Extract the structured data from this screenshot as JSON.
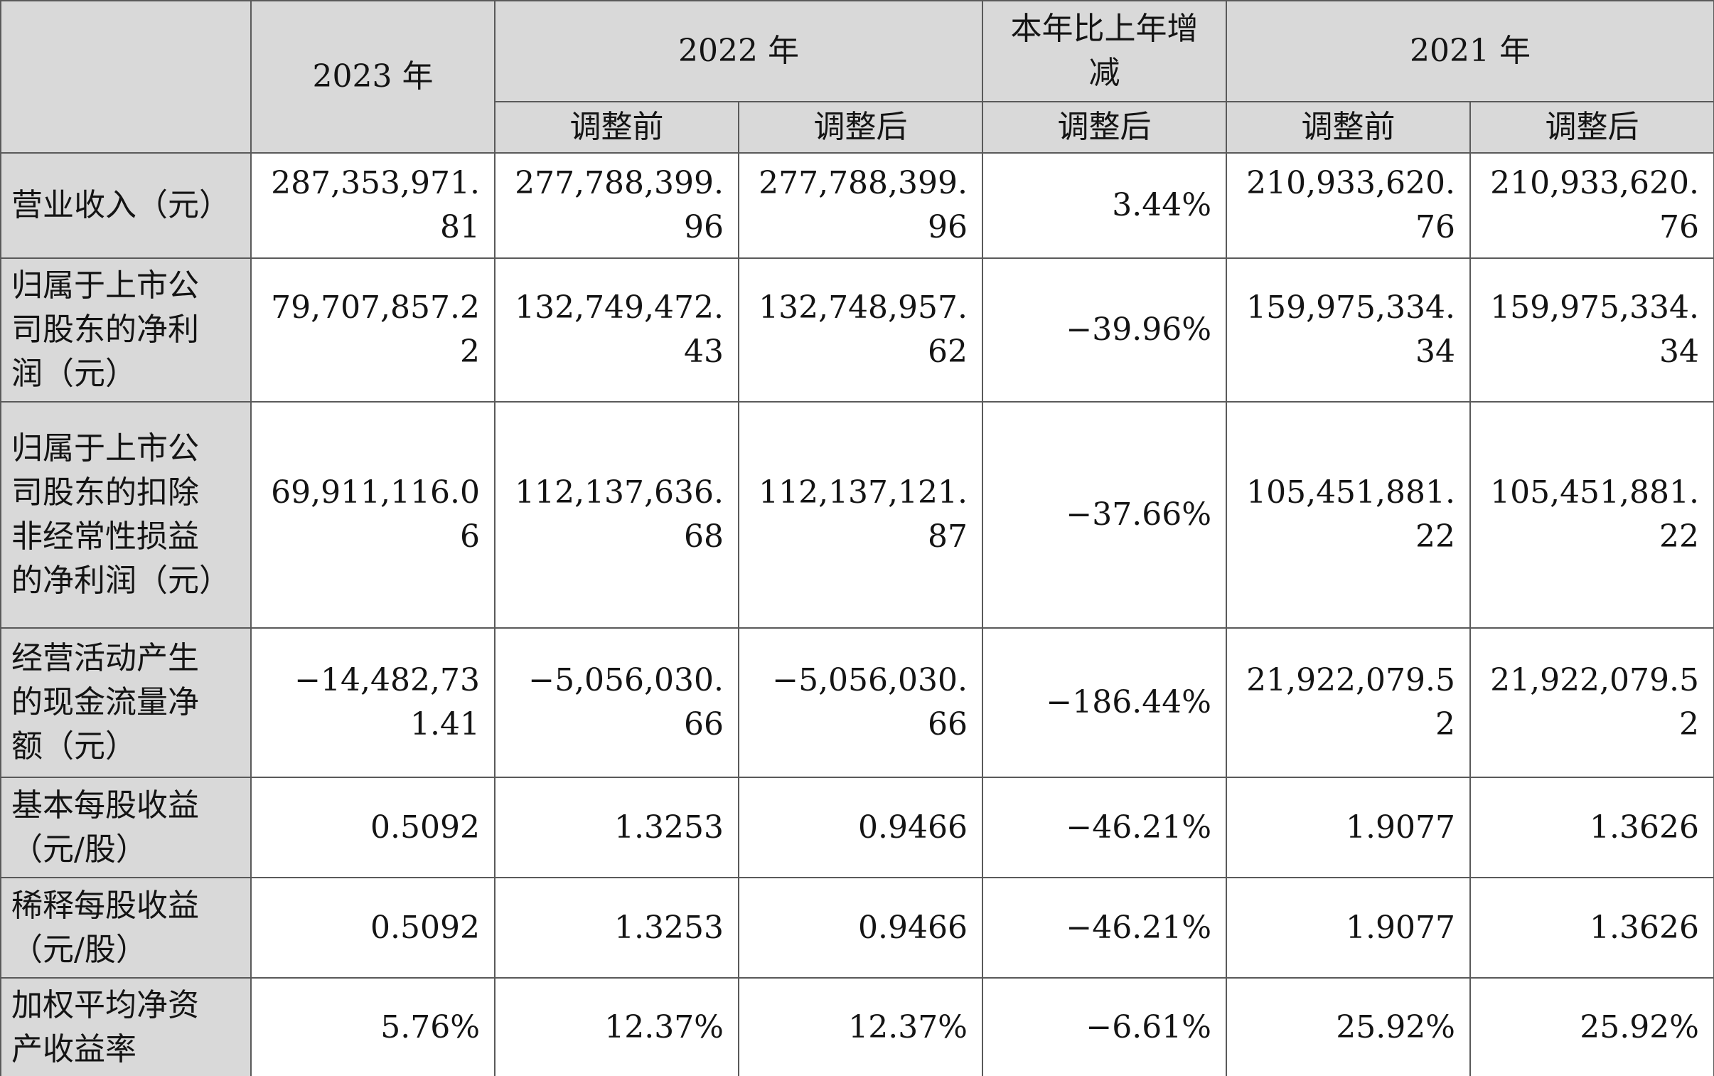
{
  "colors": {
    "header_bg": "#d9d9d9",
    "cell_bg": "#ffffff",
    "border": "#5a5a5a",
    "text": "#141414"
  },
  "chart_data": {
    "type": "table",
    "header": {
      "groups": [
        {
          "label": "",
          "colspan": 1,
          "rowspan": 2
        },
        {
          "label": "2023 年",
          "colspan": 1,
          "rowspan": 2
        },
        {
          "label": "2022 年",
          "colspan": 2,
          "rowspan": 1
        },
        {
          "label": "本年比上年增减",
          "colspan": 1,
          "rowspan": 1
        },
        {
          "label": "2021 年",
          "colspan": 2,
          "rowspan": 1
        }
      ],
      "subheaders": [
        "调整前",
        "调整后",
        "调整后",
        "调整前",
        "调整后"
      ]
    },
    "rows": [
      [
        "营业收入（元）",
        "287,353,971.81",
        "277,788,399.96",
        "277,788,399.96",
        "3.44%",
        "210,933,620.76",
        "210,933,620.76"
      ],
      [
        "归属于上市公司股东的净利润（元）",
        "79,707,857.22",
        "132,749,472.43",
        "132,748,957.62",
        "−39.96%",
        "159,975,334.34",
        "159,975,334.34"
      ],
      [
        "归属于上市公司股东的扣除非经常性损益的净利润（元）",
        "69,911,116.06",
        "112,137,636.68",
        "112,137,121.87",
        "−37.66%",
        "105,451,881.22",
        "105,451,881.22"
      ],
      [
        "经营活动产生的现金流量净额（元）",
        "−14,482,731.41",
        "−5,056,030.66",
        "−5,056,030.66",
        "−186.44%",
        "21,922,079.52",
        "21,922,079.52"
      ],
      [
        "基本每股收益（元/股）",
        "0.5092",
        "1.3253",
        "0.9466",
        "−46.21%",
        "1.9077",
        "1.3626"
      ],
      [
        "稀释每股收益（元/股）",
        "0.5092",
        "1.3253",
        "0.9466",
        "−46.21%",
        "1.9077",
        "1.3626"
      ],
      [
        "加权平均净资产收益率",
        "5.76%",
        "12.37%",
        "12.37%",
        "−6.61%",
        "25.92%",
        "25.92%"
      ]
    ]
  }
}
